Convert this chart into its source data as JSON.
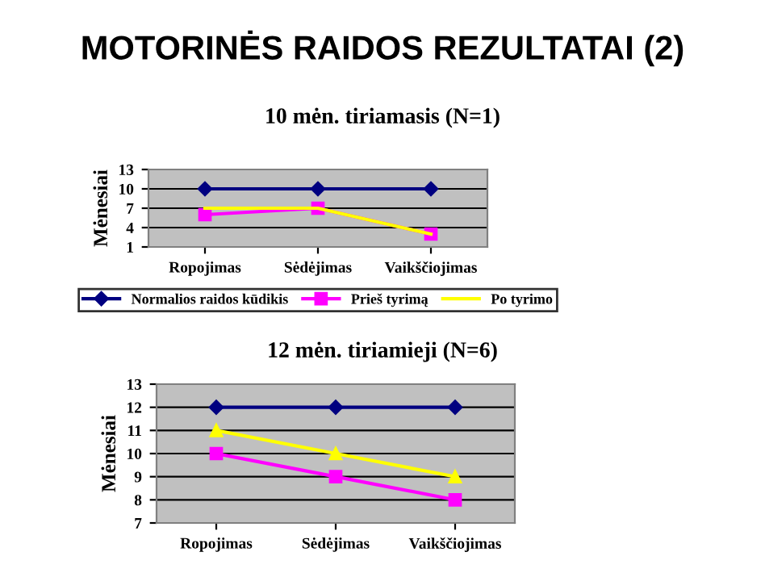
{
  "chart_data": [
    {
      "type": "line",
      "title": "MOTORINĖS RAIDOS REZULTATAI (2)",
      "subtitle": "10 mėn. tiriamasis (N=1)",
      "ylabel": "Mėnesiai",
      "categories": [
        "Ropojimas",
        "Sėdėjimas",
        "Vaikščiojimas"
      ],
      "series": [
        {
          "name": "Normalios raidos kūdikis",
          "color": "#000080",
          "marker": "diamond",
          "values": [
            10,
            10,
            10
          ]
        },
        {
          "name": "Prieš tyrimą",
          "color": "#ff00ff",
          "marker": "square",
          "values": [
            6,
            7,
            3
          ]
        },
        {
          "name": "Po tyrimo",
          "color": "#ffff00",
          "marker": "none",
          "values": [
            7,
            7,
            3
          ]
        }
      ],
      "ylim": [
        1,
        13
      ],
      "yticks": [
        1,
        4,
        7,
        10,
        13
      ],
      "grid": "y",
      "legend": "bottom"
    },
    {
      "type": "line",
      "subtitle": "12 mėn. tiriamieji (N=6)",
      "ylabel": "Mėnesiai",
      "categories": [
        "Ropojimas",
        "Sėdėjimas",
        "Vaikščiojimas"
      ],
      "series": [
        {
          "color": "#000080",
          "marker": "diamond",
          "values": [
            12,
            12,
            12
          ]
        },
        {
          "color": "#ff00ff",
          "marker": "square",
          "values": [
            10,
            9,
            8
          ]
        },
        {
          "color": "#ffff00",
          "marker": "triangle",
          "values": [
            11,
            10,
            9
          ]
        }
      ],
      "ylim": [
        7,
        13
      ],
      "yticks": [
        7,
        8,
        9,
        10,
        11,
        12,
        13
      ],
      "grid": "y"
    }
  ]
}
